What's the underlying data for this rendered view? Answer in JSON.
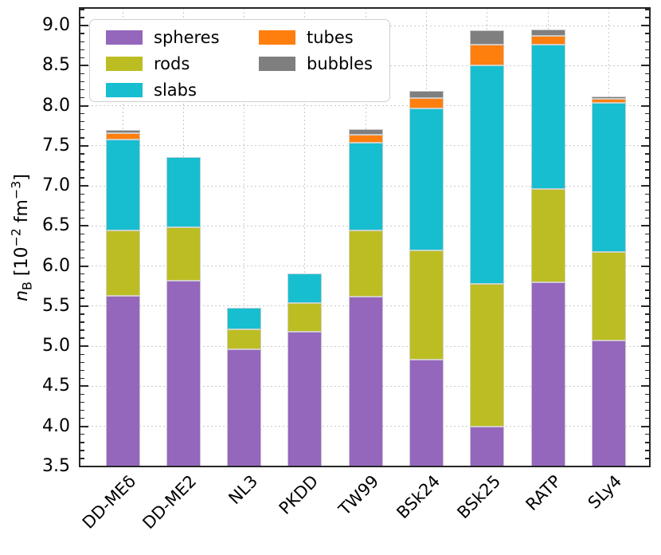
{
  "figure": {
    "ylabel": {
      "var": "n",
      "sub": "B",
      "open": " [10",
      "exp1": "−2",
      "unit": " fm",
      "exp2": "−3",
      "close": "]"
    }
  },
  "chart_data": {
    "type": "bar",
    "subtype": "stacked-bar",
    "title": "",
    "xlabel": "",
    "ylabel_text": "n_B [10^-2 fm^-3]",
    "categories": [
      "DD-MEδ",
      "DD-ME2",
      "NL3",
      "PKDD",
      "TW99",
      "BSk24",
      "BSk25",
      "RATP",
      "SLy4"
    ],
    "base": 3.5,
    "ylim": [
      3.5,
      9.22
    ],
    "yticks_major": [
      3.5,
      4.0,
      4.5,
      5.0,
      5.5,
      6.0,
      6.5,
      7.0,
      7.5,
      8.0,
      8.5,
      9.0
    ],
    "ytick_minor_step": 0.1,
    "grid": true,
    "series": [
      {
        "name": "spheres",
        "color": "#9467bd",
        "tops": [
          5.63,
          5.82,
          4.96,
          5.18,
          5.62,
          4.83,
          4.0,
          5.8,
          5.07
        ]
      },
      {
        "name": "rods",
        "color": "#bcbd22",
        "tops": [
          6.44,
          6.48,
          5.21,
          5.54,
          6.44,
          6.2,
          5.78,
          6.96,
          6.18
        ]
      },
      {
        "name": "slabs",
        "color": "#17becf",
        "tops": [
          7.58,
          7.36,
          5.48,
          5.91,
          7.54,
          7.97,
          8.5,
          8.76,
          8.04
        ]
      },
      {
        "name": "tubes",
        "color": "#ff7f0e",
        "tops": [
          7.66,
          null,
          null,
          null,
          7.64,
          8.1,
          8.76,
          8.87,
          8.09
        ]
      },
      {
        "name": "bubbles",
        "color": "#7f7f7f",
        "tops": [
          7.7,
          null,
          null,
          null,
          7.71,
          8.19,
          8.94,
          8.95,
          8.12
        ]
      }
    ],
    "legend": {
      "position": "upper left",
      "columns": [
        [
          "spheres",
          "rods",
          "slabs"
        ],
        [
          "tubes",
          "bubbles"
        ]
      ]
    },
    "colors": {
      "axis": "#262626",
      "grid": "#c9c9c9",
      "spheres": "#9467bd",
      "rods": "#bcbd22",
      "slabs": "#17becf",
      "tubes": "#ff7f0e",
      "bubbles": "#7f7f7f"
    }
  }
}
